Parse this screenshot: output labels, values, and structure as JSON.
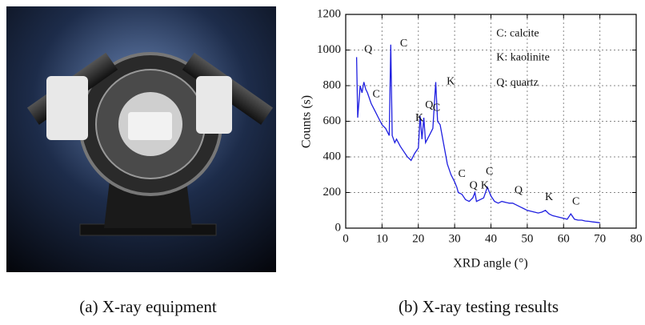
{
  "captions": [
    "(a) X-ray equipment",
    "(b) X-ray testing results"
  ],
  "chart_data": {
    "type": "line",
    "xlabel": "XRD angle (°)",
    "ylabel": "Counts (s)",
    "color": "#1f1fe0",
    "grid": true,
    "xlim": [
      0,
      80
    ],
    "xticks": [
      0,
      10,
      20,
      30,
      40,
      50,
      60,
      70,
      80
    ],
    "ylim": [
      0,
      1200
    ],
    "yticks": [
      0,
      200,
      400,
      600,
      800,
      1000,
      1200
    ],
    "x": [
      3,
      3.3,
      4,
      4.5,
      5,
      5.5,
      6,
      7,
      8,
      9,
      10,
      11,
      12,
      12.4,
      12.8,
      13.5,
      14,
      15,
      16,
      17,
      18,
      19,
      20,
      20.5,
      21,
      21.5,
      22,
      23,
      24,
      24.8,
      25.3,
      26,
      27,
      28,
      29,
      30,
      30.6,
      31,
      32,
      33,
      34,
      35,
      35.6,
      36,
      37,
      38,
      39,
      40,
      41,
      42,
      43,
      44,
      45,
      46,
      47,
      48,
      49,
      50,
      51,
      52,
      53,
      54,
      55,
      56,
      57,
      58,
      59,
      60,
      61,
      62,
      63,
      64,
      65,
      66,
      67,
      68,
      69,
      70
    ],
    "values": [
      960,
      620,
      800,
      760,
      820,
      780,
      760,
      700,
      660,
      620,
      580,
      560,
      520,
      1030,
      520,
      480,
      500,
      460,
      430,
      400,
      380,
      420,
      450,
      630,
      500,
      620,
      480,
      520,
      560,
      820,
      600,
      580,
      470,
      360,
      300,
      260,
      230,
      200,
      190,
      160,
      150,
      170,
      200,
      150,
      160,
      170,
      230,
      180,
      150,
      140,
      150,
      145,
      140,
      140,
      130,
      120,
      110,
      100,
      95,
      90,
      85,
      90,
      100,
      80,
      70,
      65,
      60,
      55,
      50,
      80,
      50,
      45,
      45,
      40,
      38,
      35,
      33,
      30
    ],
    "annotations": [
      {
        "text": "C: calcite",
        "x": 41.5,
        "y": 1090
      },
      {
        "text": "K: kaolinite",
        "x": 41.5,
        "y": 955
      },
      {
        "text": "Q: quartz",
        "x": 41.5,
        "y": 815
      },
      {
        "text": "Q",
        "x": 6.2,
        "y": 1002
      },
      {
        "text": "C",
        "x": 16,
        "y": 1034
      },
      {
        "text": "C",
        "x": 8.4,
        "y": 750
      },
      {
        "text": "K",
        "x": 20.3,
        "y": 616
      },
      {
        "text": "Q",
        "x": 23,
        "y": 688
      },
      {
        "text": "C",
        "x": 25,
        "y": 674
      },
      {
        "text": "K",
        "x": 28.9,
        "y": 822
      },
      {
        "text": "C",
        "x": 32,
        "y": 301
      },
      {
        "text": "Q",
        "x": 35.2,
        "y": 238
      },
      {
        "text": "K",
        "x": 38.3,
        "y": 238
      },
      {
        "text": "C",
        "x": 39.6,
        "y": 315
      },
      {
        "text": "Q",
        "x": 47.6,
        "y": 211
      },
      {
        "text": "K",
        "x": 56,
        "y": 171
      },
      {
        "text": "C",
        "x": 63.4,
        "y": 148
      }
    ]
  }
}
